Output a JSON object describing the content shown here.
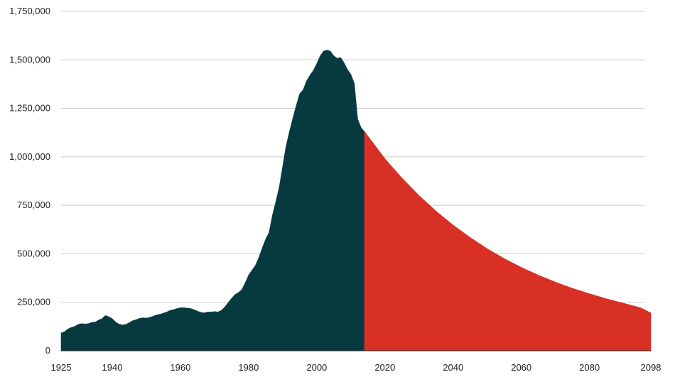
{
  "chart_data": {
    "type": "area",
    "title": "",
    "xlabel": "",
    "ylabel": "",
    "grid": true,
    "legend": "none",
    "xlim": [
      1925,
      2098
    ],
    "ylim": [
      0,
      1750000
    ],
    "x_ticks": [
      1925,
      1940,
      1960,
      1980,
      2000,
      2020,
      2040,
      2060,
      2080,
      2098
    ],
    "x_tick_labels": [
      "1925",
      "1940",
      "1960",
      "1980",
      "2000",
      "2020",
      "2040",
      "2060",
      "2080",
      "2098"
    ],
    "y_ticks": [
      0,
      250000,
      500000,
      750000,
      1000000,
      1250000,
      1500000,
      1750000
    ],
    "y_tick_labels": [
      "0",
      "250,000",
      "500,000",
      "750,000",
      "1,000,000",
      "1,250,000",
      "1,500,000",
      "1,750,000"
    ],
    "series": [
      {
        "color": "#073a3f",
        "points": [
          [
            1925,
            92000
          ],
          [
            1926,
            98000
          ],
          [
            1927,
            112000
          ],
          [
            1928,
            120000
          ],
          [
            1929,
            126000
          ],
          [
            1930,
            136000
          ],
          [
            1931,
            140000
          ],
          [
            1932,
            138000
          ],
          [
            1933,
            140000
          ],
          [
            1934,
            146000
          ],
          [
            1935,
            148000
          ],
          [
            1936,
            158000
          ],
          [
            1937,
            165000
          ],
          [
            1938,
            182000
          ],
          [
            1939,
            175000
          ],
          [
            1940,
            165000
          ],
          [
            1941,
            148000
          ],
          [
            1942,
            137000
          ],
          [
            1943,
            133000
          ],
          [
            1944,
            136000
          ],
          [
            1945,
            145000
          ],
          [
            1946,
            155000
          ],
          [
            1947,
            160000
          ],
          [
            1948,
            167000
          ],
          [
            1949,
            170000
          ],
          [
            1950,
            168000
          ],
          [
            1951,
            172000
          ],
          [
            1952,
            178000
          ],
          [
            1953,
            185000
          ],
          [
            1954,
            188000
          ],
          [
            1955,
            194000
          ],
          [
            1956,
            200000
          ],
          [
            1957,
            208000
          ],
          [
            1958,
            212000
          ],
          [
            1959,
            218000
          ],
          [
            1960,
            222000
          ],
          [
            1961,
            222000
          ],
          [
            1962,
            220000
          ],
          [
            1963,
            218000
          ],
          [
            1964,
            212000
          ],
          [
            1965,
            204000
          ],
          [
            1966,
            198000
          ],
          [
            1967,
            195000
          ],
          [
            1968,
            200000
          ],
          [
            1969,
            200000
          ],
          [
            1970,
            202000
          ],
          [
            1971,
            200000
          ],
          [
            1972,
            208000
          ],
          [
            1973,
            225000
          ],
          [
            1974,
            248000
          ],
          [
            1975,
            270000
          ],
          [
            1976,
            290000
          ],
          [
            1977,
            300000
          ],
          [
            1978,
            315000
          ],
          [
            1979,
            350000
          ],
          [
            1980,
            390000
          ],
          [
            1981,
            415000
          ],
          [
            1982,
            440000
          ],
          [
            1983,
            480000
          ],
          [
            1984,
            530000
          ],
          [
            1985,
            575000
          ],
          [
            1986,
            610000
          ],
          [
            1987,
            700000
          ],
          [
            1988,
            770000
          ],
          [
            1989,
            845000
          ],
          [
            1990,
            950000
          ],
          [
            1991,
            1055000
          ],
          [
            1992,
            1130000
          ],
          [
            1993,
            1200000
          ],
          [
            1994,
            1265000
          ],
          [
            1995,
            1325000
          ],
          [
            1996,
            1345000
          ],
          [
            1997,
            1390000
          ],
          [
            1998,
            1420000
          ],
          [
            1999,
            1445000
          ],
          [
            2000,
            1480000
          ],
          [
            2001,
            1520000
          ],
          [
            2002,
            1545000
          ],
          [
            2003,
            1550000
          ],
          [
            2004,
            1545000
          ],
          [
            2005,
            1520000
          ],
          [
            2006,
            1508000
          ],
          [
            2007,
            1512000
          ],
          [
            2008,
            1485000
          ],
          [
            2009,
            1450000
          ],
          [
            2010,
            1425000
          ],
          [
            2011,
            1380000
          ],
          [
            2012,
            1195000
          ],
          [
            2013,
            1150000
          ],
          [
            2014,
            1130000
          ]
        ]
      },
      {
        "color": "#d93025",
        "points": [
          [
            2014,
            1130000
          ],
          [
            2020,
            990000
          ],
          [
            2025,
            890000
          ],
          [
            2030,
            800000
          ],
          [
            2035,
            720000
          ],
          [
            2040,
            648000
          ],
          [
            2045,
            584000
          ],
          [
            2050,
            526000
          ],
          [
            2055,
            475000
          ],
          [
            2060,
            430000
          ],
          [
            2065,
            390000
          ],
          [
            2070,
            354000
          ],
          [
            2075,
            322000
          ],
          [
            2080,
            294000
          ],
          [
            2085,
            268000
          ],
          [
            2090,
            245000
          ],
          [
            2095,
            222000
          ],
          [
            2098,
            195000
          ]
        ]
      }
    ]
  }
}
